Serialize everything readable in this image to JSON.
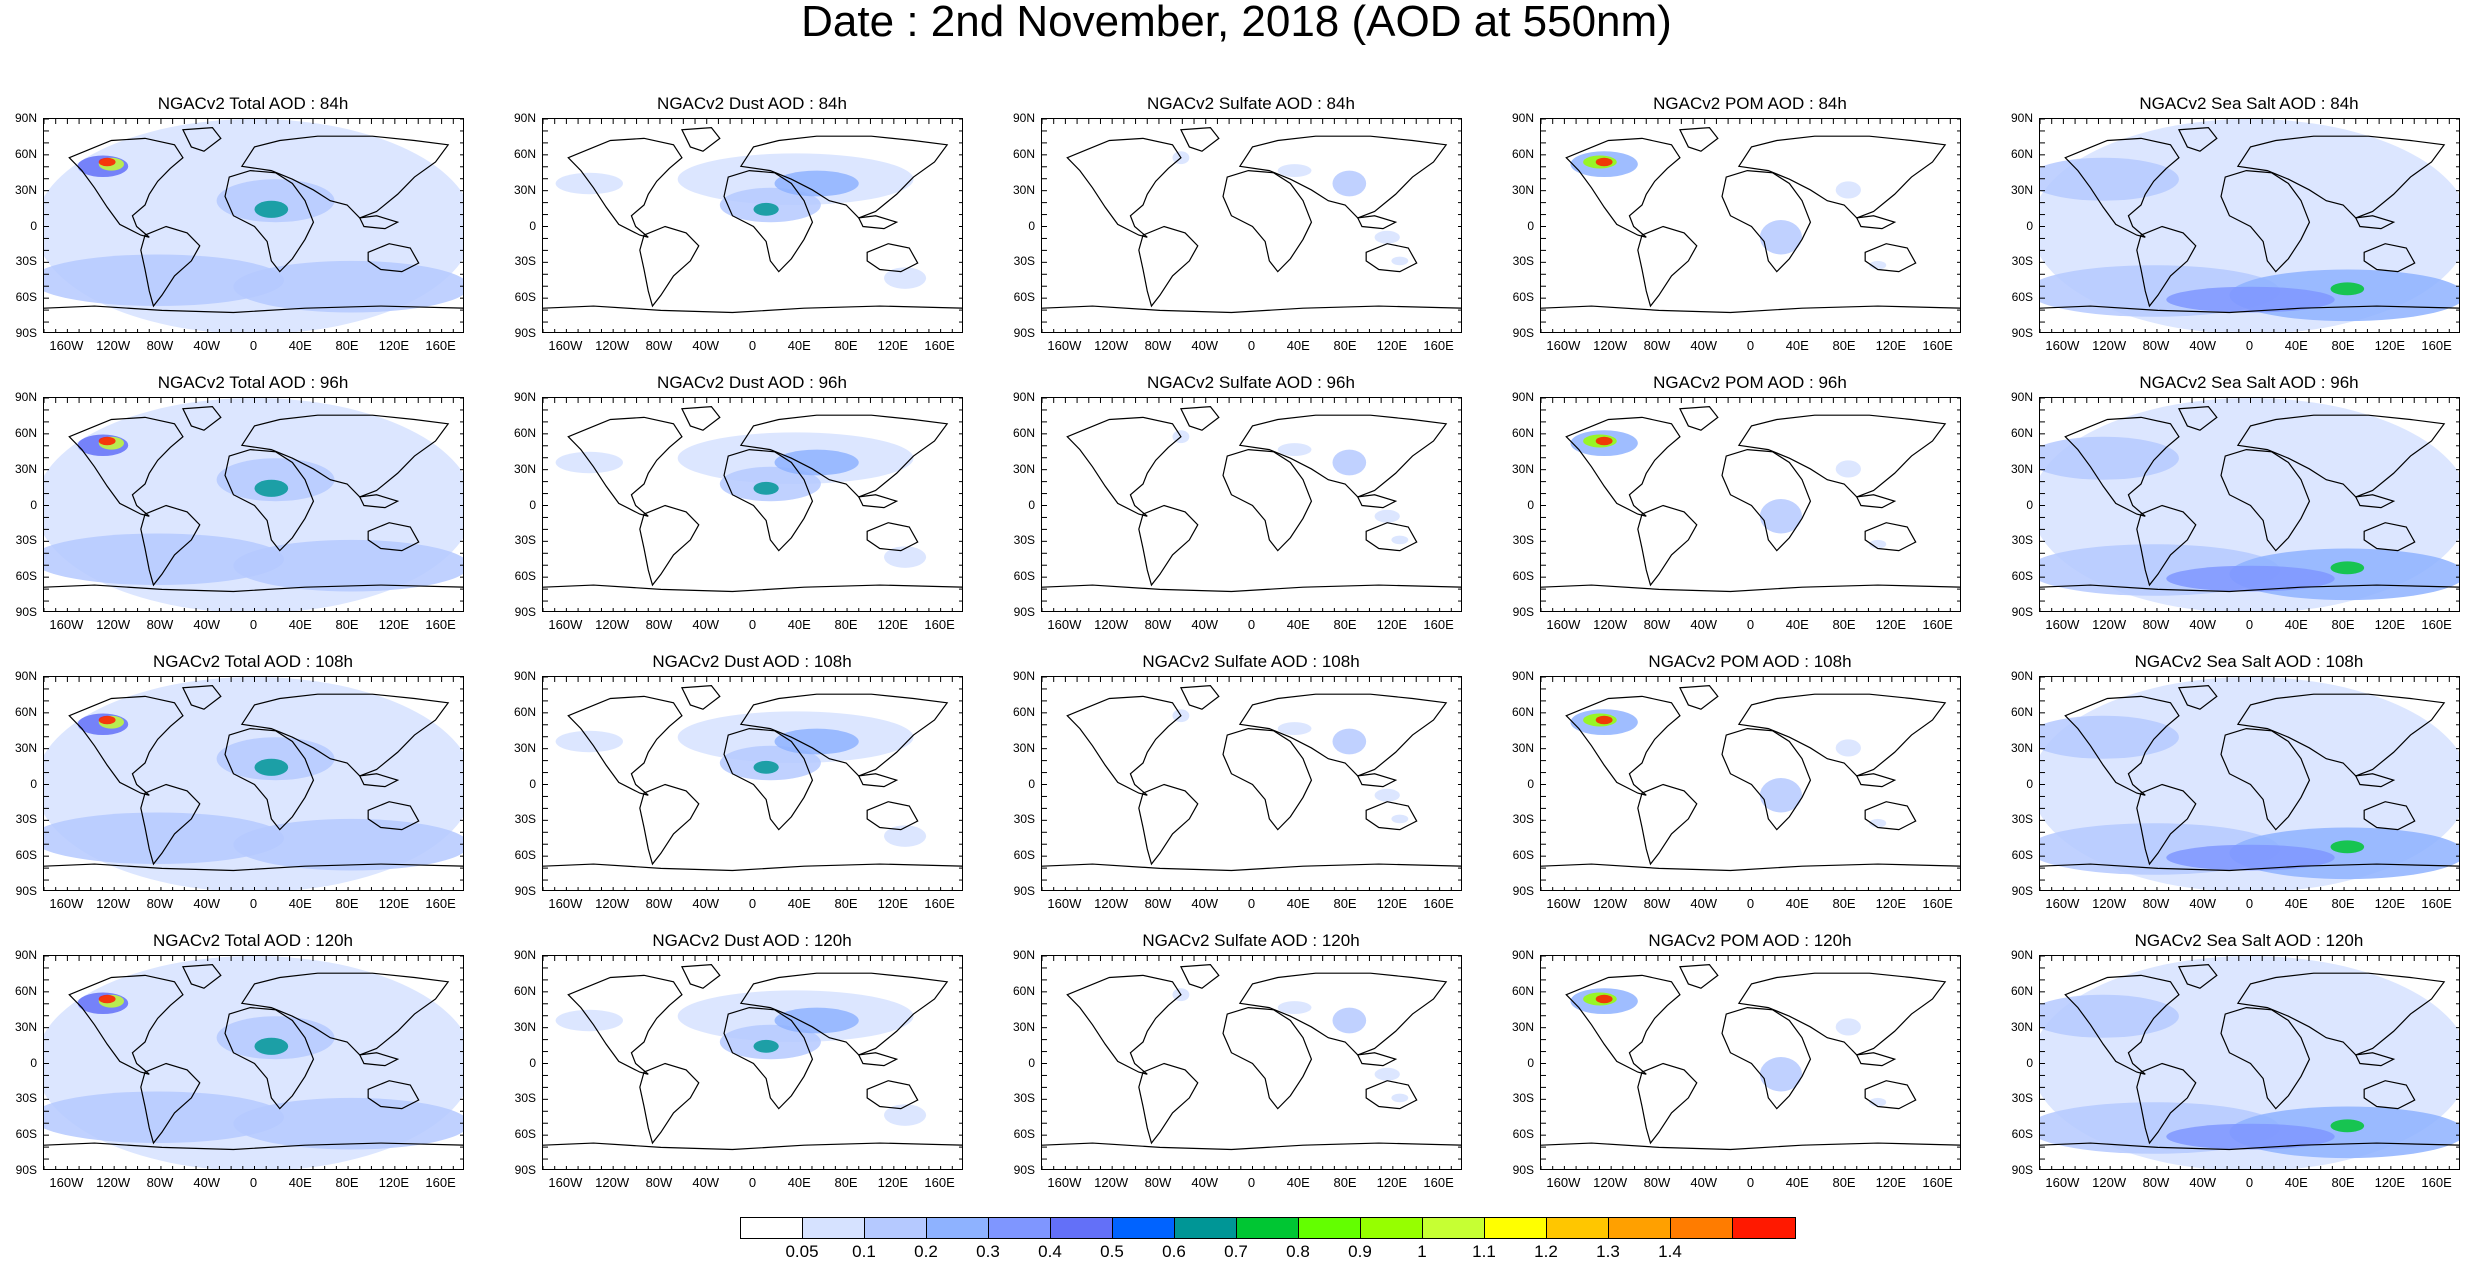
{
  "title": "Date : 2nd November, 2018 (AOD at 550nm)",
  "panels": [
    [
      "NGACv2 Total AOD : 84h",
      "NGACv2 Dust AOD : 84h",
      "NGACv2 Sulfate AOD : 84h",
      "NGACv2 POM AOD : 84h",
      "NGACv2 Sea Salt AOD : 84h"
    ],
    [
      "NGACv2 Total AOD : 96h",
      "NGACv2 Dust AOD : 96h",
      "NGACv2 Sulfate AOD : 96h",
      "NGACv2 POM AOD : 96h",
      "NGACv2 Sea Salt AOD : 96h"
    ],
    [
      "NGACv2 Total AOD : 108h",
      "NGACv2 Dust AOD : 108h",
      "NGACv2 Sulfate AOD : 108h",
      "NGACv2 POM AOD : 108h",
      "NGACv2 Sea Salt AOD : 108h"
    ],
    [
      "NGACv2 Total AOD : 120h",
      "NGACv2 Dust AOD : 120h",
      "NGACv2 Sulfate AOD : 120h",
      "NGACv2 POM AOD : 120h",
      "NGACv2 Sea Salt  AOD : 120h"
    ]
  ],
  "panel_fields": [
    "total",
    "dust",
    "sulfate",
    "pom",
    "seasalt"
  ],
  "lat_labels": [
    "90N",
    "60N",
    "30N",
    "0",
    "30S",
    "60S",
    "90S"
  ],
  "lon_labels": [
    "160W",
    "120W",
    "80W",
    "40W",
    "0",
    "40E",
    "80E",
    "120E",
    "160E"
  ],
  "colorbar": {
    "colors": [
      "#ffffff",
      "#d6e2ff",
      "#b5c9ff",
      "#8eb2ff",
      "#7f96ff",
      "#6370f8",
      "#0063ff",
      "#009696",
      "#00c633",
      "#63ff00",
      "#96ff00",
      "#c6ff33",
      "#ffff00",
      "#ffc600",
      "#ffa000",
      "#ff7c00",
      "#ff1900"
    ],
    "labels": [
      "0.05",
      "0.1",
      "0.2",
      "0.3",
      "0.4",
      "0.5",
      "0.6",
      "0.7",
      "0.8",
      "0.9",
      "1",
      "1.1",
      "1.2",
      "1.3",
      "1.4"
    ]
  }
}
